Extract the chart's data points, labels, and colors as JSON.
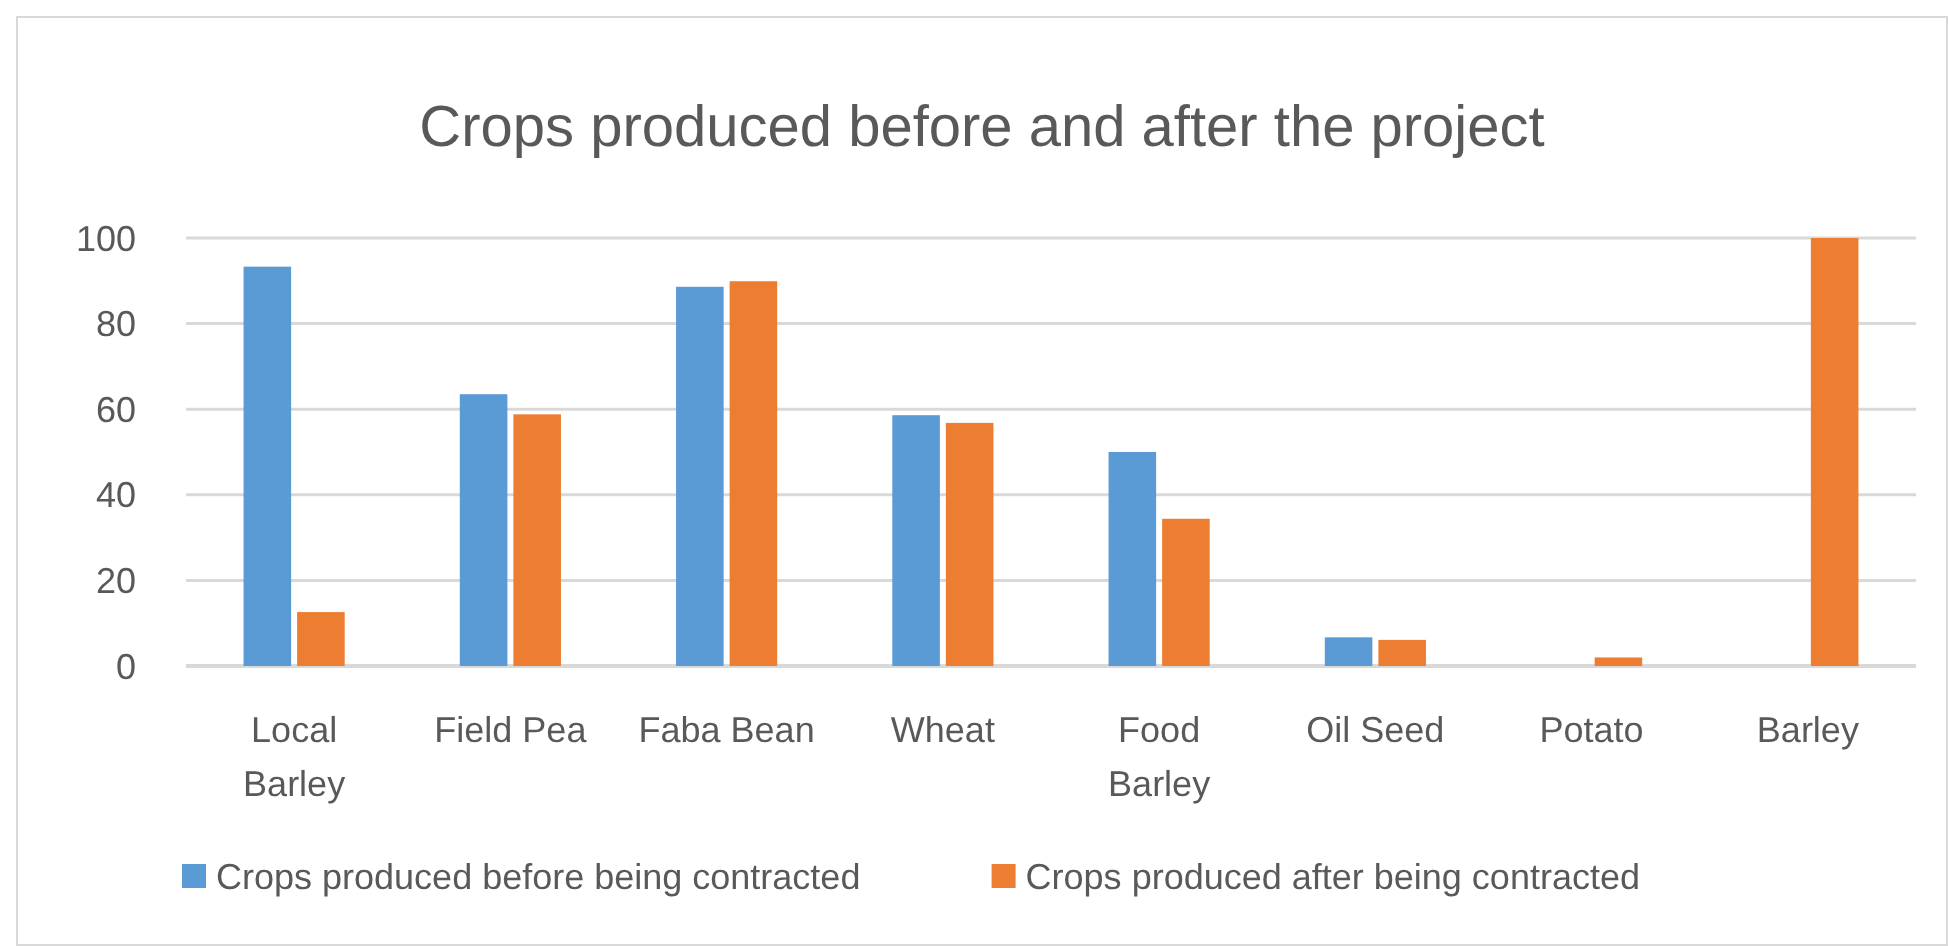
{
  "chart_data": {
    "type": "bar",
    "title": "Crops produced before and after the project",
    "categories": [
      "Local Barley",
      "Field Pea",
      "Faba Bean",
      "Wheat",
      "Food Barley",
      "Oil Seed",
      "Potato",
      "Barley"
    ],
    "series": [
      {
        "name": "Crops produced before being contracted",
        "color": "#5b9bd5",
        "values": [
          93.3,
          63.5,
          88.6,
          58.6,
          50,
          6.7,
          0,
          0
        ]
      },
      {
        "name": "Crops produced after being contracted",
        "color": "#ed7d31",
        "values": [
          12.6,
          58.8,
          89.9,
          56.8,
          34.4,
          6.1,
          2,
          100
        ]
      }
    ],
    "ylim": [
      0,
      100
    ],
    "yticks": [
      0,
      20,
      40,
      60,
      80,
      100
    ],
    "grid": "y",
    "legend": "bottom"
  }
}
